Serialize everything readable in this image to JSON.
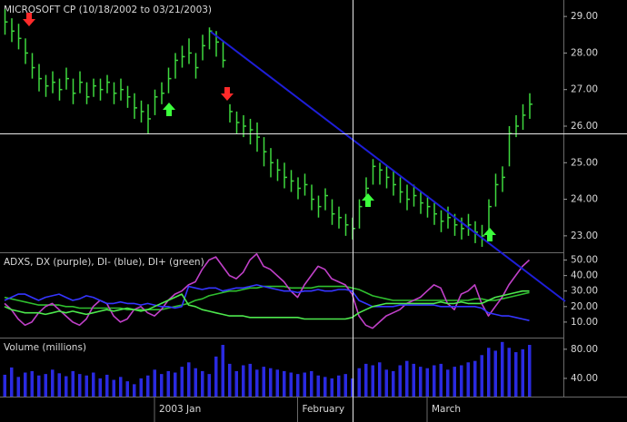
{
  "chart_data": [
    {
      "type": "hlc",
      "title": "MICROSOFT CP (10/18/2002 to 03/21/2003)",
      "color": "#3ed83e",
      "close": [
        28.85,
        28.6,
        28.4,
        28.0,
        27.6,
        27.3,
        27.1,
        27.2,
        27.0,
        27.3,
        26.9,
        27.2,
        26.8,
        27.1,
        27.0,
        27.2,
        26.9,
        27.0,
        26.8,
        26.5,
        26.4,
        26.2,
        26.8,
        26.9,
        27.3,
        27.8,
        27.9,
        28.0,
        27.6,
        28.2,
        28.6,
        28.3,
        27.8,
        26.4,
        26.1,
        26.0,
        25.9,
        25.7,
        25.3,
        25.0,
        24.8,
        24.6,
        24.5,
        24.3,
        24.4,
        24.0,
        23.8,
        24.1,
        23.6,
        23.5,
        23.3,
        23.2,
        23.8,
        24.3,
        24.9,
        24.8,
        24.6,
        24.4,
        24.2,
        24.0,
        24.1,
        23.9,
        23.8,
        23.6,
        23.4,
        23.5,
        23.3,
        23.2,
        23.3,
        23.1,
        23.0,
        23.8,
        24.4,
        24.6,
        25.8,
        26.0,
        26.3,
        26.6
      ],
      "high": [
        29.2,
        28.95,
        28.8,
        28.4,
        28.0,
        27.7,
        27.4,
        27.5,
        27.3,
        27.6,
        27.3,
        27.5,
        27.2,
        27.3,
        27.3,
        27.4,
        27.2,
        27.3,
        27.1,
        26.9,
        26.7,
        26.6,
        27.0,
        27.2,
        27.6,
        28.0,
        28.2,
        28.4,
        28.0,
        28.5,
        28.7,
        28.6,
        28.3,
        26.6,
        26.4,
        26.3,
        26.2,
        26.1,
        25.7,
        25.4,
        25.1,
        25.0,
        24.8,
        24.6,
        24.7,
        24.4,
        24.1,
        24.3,
        24.0,
        23.8,
        23.6,
        23.5,
        24.0,
        24.6,
        25.1,
        25.0,
        24.9,
        24.8,
        24.6,
        24.4,
        24.4,
        24.2,
        24.1,
        23.9,
        23.7,
        23.8,
        23.6,
        23.5,
        23.6,
        23.4,
        23.3,
        24.0,
        24.7,
        24.9,
        26.0,
        26.3,
        26.6,
        26.9
      ],
      "low": [
        28.5,
        28.3,
        28.1,
        27.7,
        27.3,
        26.95,
        26.8,
        26.9,
        26.7,
        27.0,
        26.6,
        26.9,
        26.6,
        26.8,
        26.7,
        26.9,
        26.6,
        26.7,
        26.5,
        26.2,
        26.1,
        25.8,
        26.3,
        26.6,
        26.9,
        27.3,
        27.6,
        27.7,
        27.3,
        27.8,
        28.1,
        27.9,
        27.6,
        26.1,
        25.8,
        25.7,
        25.5,
        25.3,
        24.9,
        24.6,
        24.5,
        24.3,
        24.2,
        24.0,
        24.1,
        23.7,
        23.5,
        23.7,
        23.3,
        23.2,
        23.0,
        22.9,
        23.2,
        23.8,
        24.4,
        24.4,
        24.3,
        24.1,
        23.9,
        23.7,
        23.8,
        23.6,
        23.5,
        23.3,
        23.1,
        23.2,
        23.0,
        22.9,
        23.0,
        22.8,
        22.7,
        23.0,
        23.8,
        24.2,
        24.9,
        25.7,
        25.9,
        26.2
      ],
      "ylim": [
        22.55,
        29.45
      ],
      "yticks": [
        {
          "value": 23,
          "label": "23.00"
        },
        {
          "value": 24,
          "label": "24.00"
        },
        {
          "value": 25,
          "label": "25.00"
        },
        {
          "value": 26,
          "label": "26.00"
        },
        {
          "value": 27,
          "label": "27.00"
        },
        {
          "value": 28,
          "label": "28.00"
        },
        {
          "value": 29,
          "label": "29.00"
        }
      ]
    },
    {
      "type": "line",
      "title": "ADXS, DX (purple), DI- (blue), DI+ (green)",
      "series": [
        {
          "color": "#2fbf2f",
          "values": [
            26,
            25,
            24,
            23,
            22,
            21,
            21,
            21,
            21,
            20,
            20,
            19,
            19,
            19,
            19,
            19,
            19,
            19,
            18,
            18,
            18,
            18,
            18,
            18,
            19,
            20,
            21,
            22,
            24,
            25,
            27,
            28,
            29,
            30,
            30,
            31,
            32,
            32,
            33,
            33,
            33,
            33,
            32,
            32,
            32,
            32,
            33,
            33,
            33,
            33,
            33,
            32,
            31,
            29,
            27,
            26,
            25,
            24,
            24,
            24,
            24,
            24,
            24,
            24,
            24,
            24,
            24,
            24,
            24,
            25,
            25,
            24,
            24,
            25,
            26,
            27,
            28,
            29
          ]
        },
        {
          "color": "#c040c8",
          "values": [
            22,
            18,
            12,
            8,
            10,
            16,
            20,
            22,
            18,
            14,
            10,
            8,
            12,
            20,
            24,
            22,
            14,
            10,
            12,
            18,
            20,
            16,
            14,
            18,
            24,
            28,
            30,
            34,
            36,
            44,
            50,
            52,
            46,
            40,
            38,
            42,
            50,
            54,
            46,
            44,
            40,
            36,
            30,
            26,
            34,
            40,
            46,
            44,
            38,
            36,
            34,
            28,
            14,
            8,
            6,
            10,
            14,
            16,
            18,
            22,
            24,
            26,
            30,
            34,
            32,
            22,
            18,
            28,
            30,
            34,
            22,
            14,
            20,
            26,
            34,
            40,
            46,
            50
          ]
        },
        {
          "color": "#3535ff",
          "values": [
            24,
            26,
            28,
            28,
            26,
            24,
            26,
            27,
            28,
            26,
            24,
            25,
            27,
            26,
            24,
            22,
            22,
            23,
            22,
            22,
            21,
            22,
            21,
            20,
            20,
            19,
            20,
            33,
            32,
            31,
            32,
            32,
            30,
            31,
            32,
            32,
            33,
            34,
            33,
            32,
            31,
            30,
            30,
            29,
            30,
            30,
            31,
            30,
            30,
            31,
            31,
            30,
            24,
            22,
            20,
            20,
            20,
            20,
            21,
            21,
            21,
            21,
            21,
            21,
            20,
            20,
            20,
            20,
            20,
            20,
            19,
            16,
            15,
            14,
            14,
            13,
            12,
            11
          ]
        },
        {
          "color": "#4de84d",
          "values": [
            20,
            18,
            17,
            16,
            16,
            16,
            15,
            16,
            17,
            16,
            17,
            16,
            15,
            16,
            17,
            18,
            17,
            18,
            19,
            18,
            17,
            18,
            20,
            22,
            24,
            26,
            28,
            21,
            20,
            18,
            17,
            16,
            15,
            14,
            14,
            14,
            13,
            13,
            13,
            13,
            13,
            13,
            13,
            13,
            12,
            12,
            12,
            12,
            12,
            12,
            12,
            13,
            16,
            18,
            20,
            21,
            22,
            22,
            22,
            22,
            22,
            22,
            22,
            22,
            23,
            22,
            22,
            23,
            22,
            22,
            22,
            24,
            26,
            27,
            28,
            29,
            30,
            30
          ]
        }
      ],
      "ylim": [
        0,
        55
      ],
      "yticks": [
        {
          "value": 10,
          "label": "10.00"
        },
        {
          "value": 20,
          "label": "20.00"
        },
        {
          "value": 30,
          "label": "30.00"
        },
        {
          "value": 40,
          "label": "40.00"
        },
        {
          "value": 50,
          "label": "50.00"
        }
      ]
    },
    {
      "type": "bar",
      "title": "Volume (millions)",
      "color": "#2a2ae0",
      "categories": [
        null,
        null,
        null,
        null,
        null,
        null,
        null,
        null,
        null,
        null,
        null,
        null,
        null,
        null,
        null,
        null,
        null,
        null,
        null,
        null,
        null,
        null,
        "2003 Jan",
        null,
        null,
        null,
        null,
        null,
        null,
        null,
        null,
        null,
        null,
        null,
        null,
        null,
        null,
        null,
        null,
        null,
        null,
        null,
        null,
        "February",
        null,
        null,
        null,
        null,
        null,
        null,
        null,
        null,
        null,
        null,
        null,
        null,
        null,
        null,
        null,
        null,
        null,
        null,
        "March",
        null,
        null,
        null,
        null,
        null,
        null,
        null,
        null,
        null,
        null,
        null,
        null,
        null,
        null,
        null
      ],
      "values": [
        45,
        55,
        42,
        48,
        50,
        44,
        46,
        52,
        47,
        43,
        50,
        46,
        44,
        48,
        40,
        45,
        38,
        42,
        36,
        32,
        40,
        44,
        52,
        46,
        50,
        48,
        56,
        62,
        54,
        50,
        46,
        70,
        86,
        60,
        50,
        58,
        60,
        52,
        56,
        54,
        52,
        50,
        48,
        46,
        48,
        50,
        44,
        42,
        40,
        44,
        46,
        40,
        54,
        60,
        58,
        62,
        52,
        50,
        58,
        64,
        60,
        56,
        54,
        58,
        60,
        52,
        56,
        58,
        62,
        64,
        72,
        82,
        78,
        90,
        82,
        76,
        80,
        86
      ],
      "ylim": [
        15,
        96
      ],
      "yticks": [
        {
          "value": 40,
          "label": "40.00"
        },
        {
          "value": 80,
          "label": "80.00"
        }
      ]
    }
  ]
}
